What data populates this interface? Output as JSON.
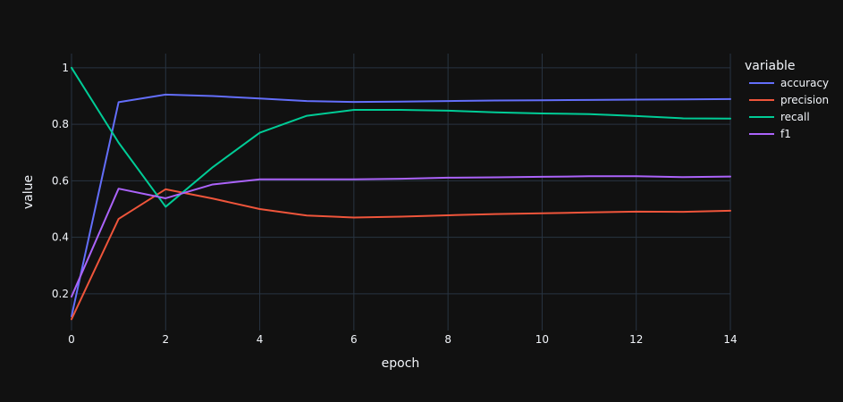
{
  "chart_data": {
    "type": "line",
    "xlabel": "epoch",
    "ylabel": "value",
    "legend_title": "variable",
    "legend_position": "top-right",
    "grid": true,
    "xlim": [
      0,
      14
    ],
    "ylim": [
      0.07,
      1.05
    ],
    "x_ticks": [
      0,
      2,
      4,
      6,
      8,
      10,
      12,
      14
    ],
    "y_ticks": [
      0.2,
      0.4,
      0.6,
      0.8,
      1
    ],
    "y_tick_labels": [
      "0.2",
      "0.4",
      "0.6",
      "0.8",
      "1"
    ],
    "x": [
      0,
      1,
      2,
      3,
      4,
      5,
      6,
      7,
      8,
      9,
      10,
      11,
      12,
      13,
      14
    ],
    "series": [
      {
        "name": "accuracy",
        "color": "#636efa",
        "values": [
          0.12,
          0.878,
          0.905,
          0.9,
          0.891,
          0.882,
          0.879,
          0.88,
          0.882,
          0.884,
          0.885,
          0.886,
          0.887,
          0.888,
          0.889
        ]
      },
      {
        "name": "precision",
        "color": "#ef553b",
        "values": [
          0.11,
          0.465,
          0.57,
          0.537,
          0.5,
          0.477,
          0.47,
          0.473,
          0.478,
          0.482,
          0.485,
          0.488,
          0.491,
          0.49,
          0.494
        ]
      },
      {
        "name": "recall",
        "color": "#00cc96",
        "values": [
          1.0,
          0.735,
          0.508,
          0.648,
          0.77,
          0.83,
          0.851,
          0.851,
          0.848,
          0.842,
          0.838,
          0.836,
          0.829,
          0.821,
          0.82
        ]
      },
      {
        "name": "f1",
        "color": "#ab63fa",
        "values": [
          0.19,
          0.572,
          0.538,
          0.587,
          0.605,
          0.605,
          0.605,
          0.607,
          0.611,
          0.612,
          0.614,
          0.616,
          0.616,
          0.613,
          0.615
        ]
      }
    ]
  }
}
